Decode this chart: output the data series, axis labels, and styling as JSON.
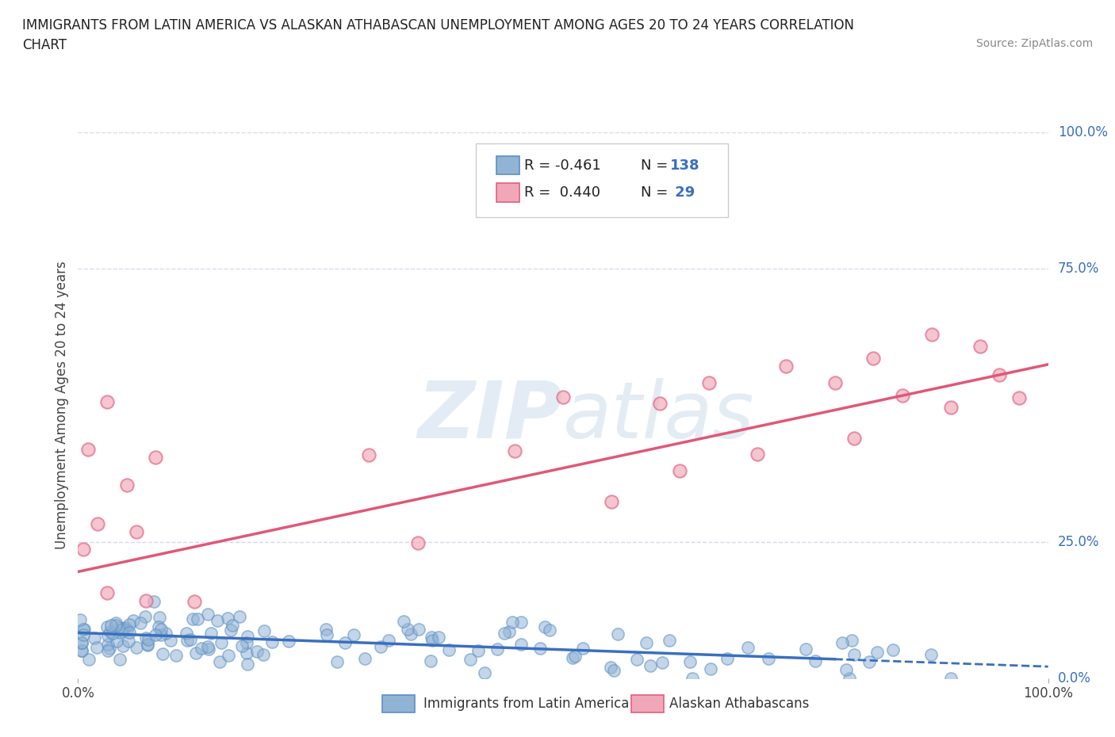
{
  "title_line1": "IMMIGRANTS FROM LATIN AMERICA VS ALASKAN ATHABASCAN UNEMPLOYMENT AMONG AGES 20 TO 24 YEARS CORRELATION",
  "title_line2": "CHART",
  "source": "Source: ZipAtlas.com",
  "ylabel": "Unemployment Among Ages 20 to 24 years",
  "legend_label1": "Immigrants from Latin America",
  "legend_label2": "Alaskan Athabascans",
  "blue_color": "#92b4d4",
  "blue_edge_color": "#5b8fc7",
  "pink_color": "#f0a8b8",
  "pink_edge_color": "#e06080",
  "blue_line_color": "#3a6fbf",
  "pink_line_color": "#e05878",
  "blue_r": -0.461,
  "blue_n": 138,
  "pink_r": 0.44,
  "pink_n": 29,
  "xlim": [
    0,
    1
  ],
  "ylim": [
    0,
    1
  ],
  "ytick_labels": [
    "0.0%",
    "25.0%",
    "75.0%",
    "100.0%"
  ],
  "ytick_values": [
    0.0,
    0.25,
    0.75,
    1.0
  ],
  "xtick_labels": [
    "0.0%",
    "100.0%"
  ],
  "xtick_values": [
    0.0,
    1.0
  ],
  "watermark": "ZIPatlas",
  "background_color": "#ffffff",
  "grid_color": "#d8d8e8",
  "legend_text_color": "#3a6fbf",
  "legend_r1": "R = -0.461",
  "legend_n1": "N = 138",
  "legend_r2": "R =  0.440",
  "legend_n2": "N =  29",
  "blue_intercept": 0.083,
  "blue_slope": -0.062,
  "pink_intercept": 0.195,
  "pink_slope": 0.38
}
